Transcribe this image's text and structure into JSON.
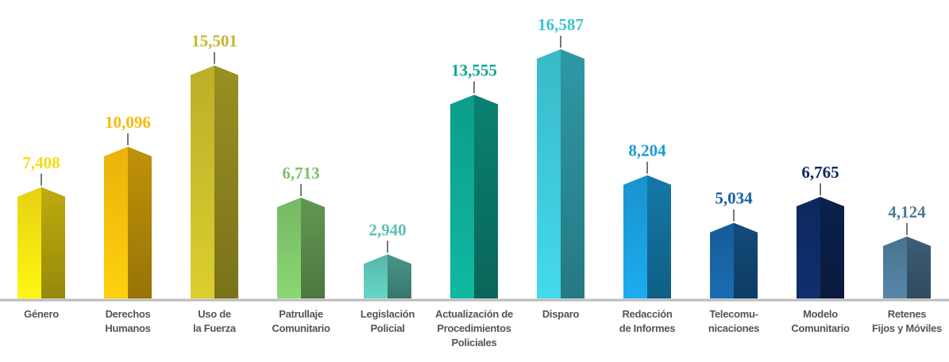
{
  "chart_data": {
    "type": "bar",
    "categories": [
      "Género",
      "Derechos\nHumanos",
      "Uso de\nla Fuerza",
      "Patrullaje\nComunitario",
      "Legislación\nPolicial",
      "Actualización de\nProcedimientos\nPoliciales",
      "Disparo",
      "Redacción\nde Informes",
      "Telecomu-\nnicaciones",
      "Modelo\nComunitario",
      "Retenes\nFijos y Móviles"
    ],
    "values": [
      7408,
      10096,
      15501,
      6713,
      2940,
      13555,
      16587,
      8204,
      5034,
      6765,
      4124
    ],
    "value_labels": [
      "7,408",
      "10,096",
      "15,501",
      "6,713",
      "2,940",
      "13,555",
      "16,587",
      "8,204",
      "5,034",
      "6,765",
      "4,124"
    ],
    "colors": [
      "#f3dc12",
      "#f5bb0c",
      "#c4b82a",
      "#7cc168",
      "#5cc0b2",
      "#0da591",
      "#3cc3d3",
      "#1a9ad6",
      "#17609f",
      "#0e2a62",
      "#4e7898"
    ]
  }
}
